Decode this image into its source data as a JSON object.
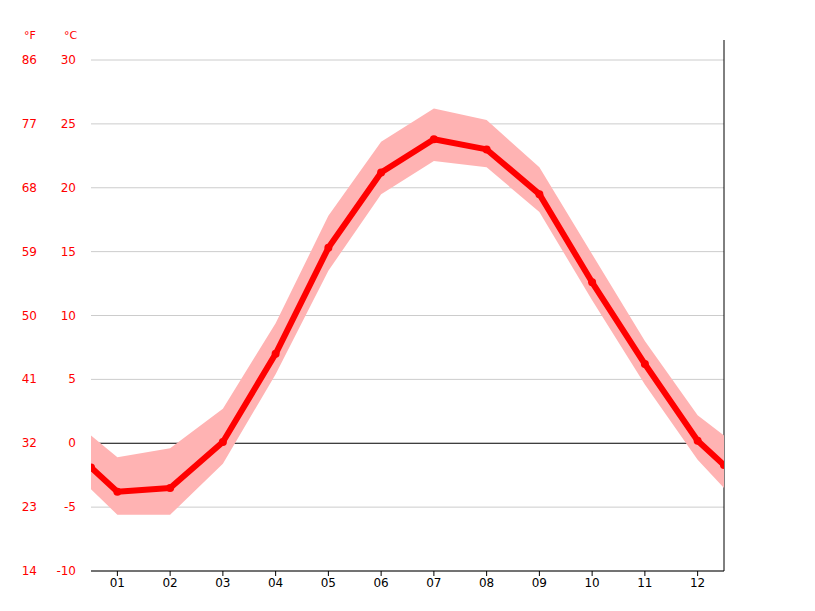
{
  "chart_data": {
    "type": "line",
    "y_label": "°C",
    "y2_label": "°F",
    "x": [
      0.5,
      1,
      2,
      3,
      4,
      5,
      6,
      7,
      8,
      9,
      10,
      11,
      12,
      12.5
    ],
    "xlim": [
      0.5,
      12.5
    ],
    "xticks": [
      {
        "value": 1,
        "label": "01"
      },
      {
        "value": 2,
        "label": "02"
      },
      {
        "value": 3,
        "label": "03"
      },
      {
        "value": 4,
        "label": "04"
      },
      {
        "value": 5,
        "label": "05"
      },
      {
        "value": 6,
        "label": "06"
      },
      {
        "value": 7,
        "label": "07"
      },
      {
        "value": 8,
        "label": "08"
      },
      {
        "value": 9,
        "label": "09"
      },
      {
        "value": 10,
        "label": "10"
      },
      {
        "value": 11,
        "label": "11"
      },
      {
        "value": 12,
        "label": "12"
      }
    ],
    "ylim": [
      -10,
      30
    ],
    "yticks": [
      -10,
      -5,
      0,
      5,
      10,
      15,
      20,
      25,
      30
    ],
    "y2lim": [
      14,
      86
    ],
    "y2ticks": [
      14,
      23,
      32,
      41,
      50,
      59,
      68,
      77,
      86
    ],
    "grid": true,
    "series": [
      {
        "type": "band",
        "color": "#ffb3b3",
        "high": [
          0.6,
          -1.1,
          -0.4,
          2.7,
          9.4,
          17.8,
          23.6,
          26.2,
          25.3,
          21.6,
          14.8,
          8.0,
          2.2,
          0.6
        ],
        "low": [
          -3.6,
          -5.6,
          -5.6,
          -1.6,
          5.4,
          13.5,
          19.5,
          22.1,
          21.6,
          18.1,
          11.2,
          4.6,
          -1.3,
          -3.5
        ]
      },
      {
        "type": "line",
        "color": "#ff0000",
        "marker": "circle",
        "values": [
          -1.9,
          -3.8,
          -3.5,
          0.1,
          7.0,
          15.3,
          21.2,
          23.8,
          23.0,
          19.5,
          12.6,
          6.2,
          0.2,
          -1.7
        ]
      }
    ]
  }
}
